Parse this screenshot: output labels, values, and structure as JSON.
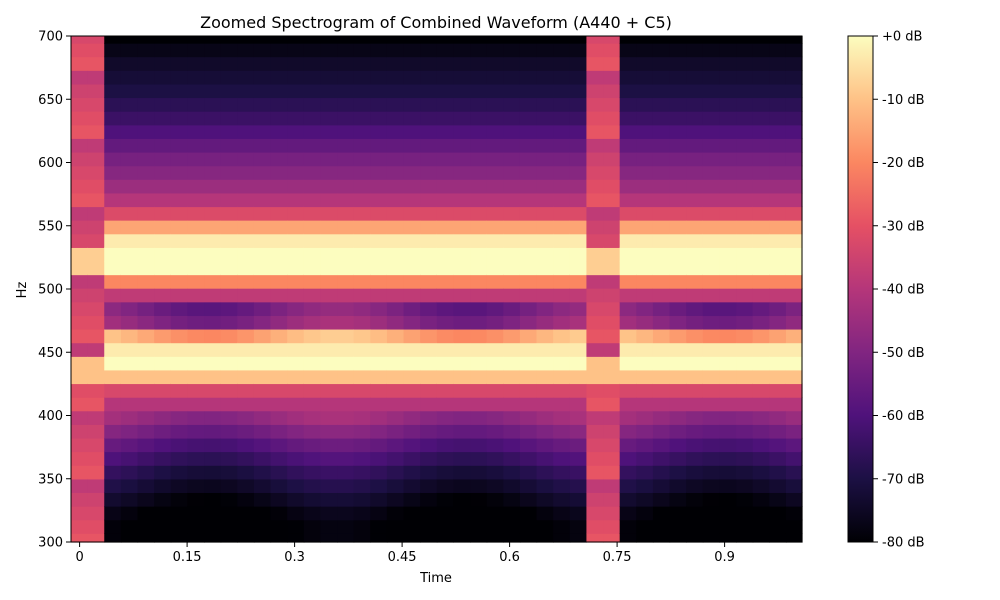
{
  "chart_data": {
    "type": "heatmap",
    "title": "Zoomed Spectrogram of Combined Waveform (A440 + C5)",
    "xlabel": "Time",
    "ylabel": "Hz",
    "xlim": [
      -0.012,
      1.008
    ],
    "ylim": [
      300,
      700
    ],
    "x_ticks": [
      0,
      0.15,
      0.3,
      0.45,
      0.6,
      0.75,
      0.9
    ],
    "x_tick_labels": [
      "0",
      "0.15",
      "0.3",
      "0.45",
      "0.6",
      "0.75",
      "0.9"
    ],
    "y_ticks": [
      300,
      350,
      400,
      450,
      500,
      550,
      600,
      650,
      700
    ],
    "y_tick_labels": [
      "300",
      "350",
      "400",
      "450",
      "500",
      "550",
      "600",
      "650",
      "700"
    ],
    "colorscale": "magma",
    "colorbar": {
      "range": [
        -80,
        0
      ],
      "ticks": [
        0,
        -10,
        -20,
        -30,
        -40,
        -50,
        -60,
        -70,
        -80
      ],
      "tick_labels": [
        "+0 dB",
        "-10 dB",
        "-20 dB",
        "-30 dB",
        "-40 dB",
        "-50 dB",
        "-60 dB",
        "-70 dB",
        "-80 dB"
      ]
    },
    "time_frame_step": 0.0232,
    "frequency_bin_step_hz": 10.77,
    "frequency_bins_hz": [
      301.5,
      312.3,
      323.0,
      333.8,
      344.6,
      355.3,
      366.1,
      376.9,
      387.6,
      398.4,
      409.2,
      419.9,
      430.7,
      441.5,
      452.2,
      463.0,
      473.8,
      484.5,
      495.3,
      506.1,
      516.8,
      527.6,
      538.3,
      549.1,
      559.9,
      570.6,
      581.4,
      592.2,
      602.9,
      613.7,
      624.5,
      635.2,
      646.0,
      656.8,
      667.5,
      678.3,
      689.1,
      699.8
    ],
    "frame_profiles": {
      "edge_frames": [
        0,
        1,
        31,
        32
      ],
      "edge_db": [
        -29,
        -31,
        -33,
        -35,
        -38
      ],
      "interior_db": [
        -82,
        -82,
        -80,
        -76,
        -72,
        -68,
        -63,
        -58,
        -52,
        -46,
        -40,
        -33,
        -10,
        0,
        -3,
        -12,
        -46,
        -50,
        -38,
        -20,
        0,
        0,
        -3,
        -15,
        -32,
        -40,
        -45,
        -49,
        -52,
        -56,
        -60,
        -64,
        -67,
        -70,
        -72,
        -74,
        -77,
        -80
      ]
    }
  }
}
